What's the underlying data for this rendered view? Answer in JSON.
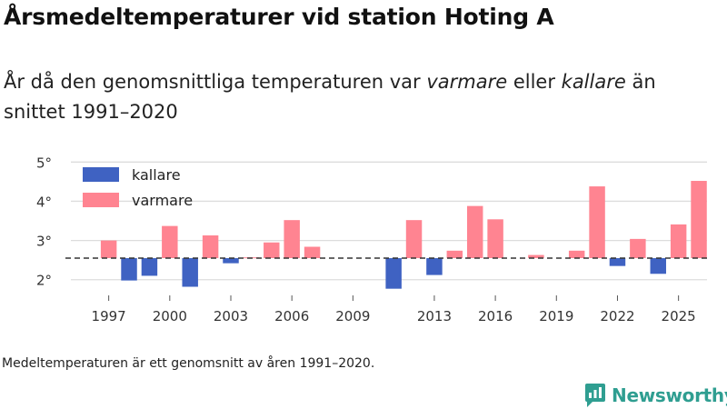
{
  "title": "Årsmedeltemperaturer vid station Hoting A",
  "subtitle": {
    "prefix": "År då den genomsnittliga temperaturen var ",
    "warmer": "varmare",
    "middle": " eller ",
    "colder": "kallare",
    "suffix": " än snittet 1991–2020"
  },
  "footnote": "Medeltemperaturen är ett genomsnitt av åren 1991–2020.",
  "brand": {
    "name": "Newsworthy",
    "icon": "newsworthy-logo-icon"
  },
  "colors": {
    "colder": "#3f62c2",
    "warmer": "#ff8491",
    "grid": "#dddddd",
    "baseline": "#333333"
  },
  "chart_data": {
    "type": "bar",
    "title": "Årsmedeltemperaturer vid station Hoting A",
    "baseline": 2.55,
    "baseline_label": "snittet 1991–2020",
    "ylim": [
      1.6,
      5.1
    ],
    "yticks": [
      2,
      3,
      4,
      5
    ],
    "ytick_labels": [
      "2°",
      "3°",
      "4°",
      "5°"
    ],
    "xlim": [
      1995.9,
      2026.4
    ],
    "xticks": [
      1997,
      2000,
      2003,
      2006,
      2009,
      2013,
      2016,
      2019,
      2022,
      2025
    ],
    "legend": [
      {
        "key": "colder",
        "label": "kallare"
      },
      {
        "key": "warmer",
        "label": "varmare"
      }
    ],
    "legend_position": "top-left",
    "series": [
      {
        "year": 1997,
        "value": 3.0
      },
      {
        "year": 1998,
        "value": 1.98
      },
      {
        "year": 1999,
        "value": 2.1
      },
      {
        "year": 2000,
        "value": 3.37
      },
      {
        "year": 2001,
        "value": 1.82
      },
      {
        "year": 2002,
        "value": 3.13
      },
      {
        "year": 2003,
        "value": 2.42
      },
      {
        "year": 2004,
        "value": 2.57
      },
      {
        "year": 2005,
        "value": 2.95
      },
      {
        "year": 2006,
        "value": 3.52
      },
      {
        "year": 2007,
        "value": 2.84
      },
      {
        "year": 2011,
        "value": 1.77
      },
      {
        "year": 2012,
        "value": 3.52
      },
      {
        "year": 2013,
        "value": 2.12
      },
      {
        "year": 2014,
        "value": 2.74
      },
      {
        "year": 2015,
        "value": 3.88
      },
      {
        "year": 2016,
        "value": 3.54
      },
      {
        "year": 2018,
        "value": 2.63
      },
      {
        "year": 2020,
        "value": 2.74
      },
      {
        "year": 2021,
        "value": 4.38
      },
      {
        "year": 2022,
        "value": 2.35
      },
      {
        "year": 2023,
        "value": 3.04
      },
      {
        "year": 2024,
        "value": 2.15
      },
      {
        "year": 2025,
        "value": 3.41
      },
      {
        "year": 2026,
        "value": 4.52
      }
    ]
  }
}
